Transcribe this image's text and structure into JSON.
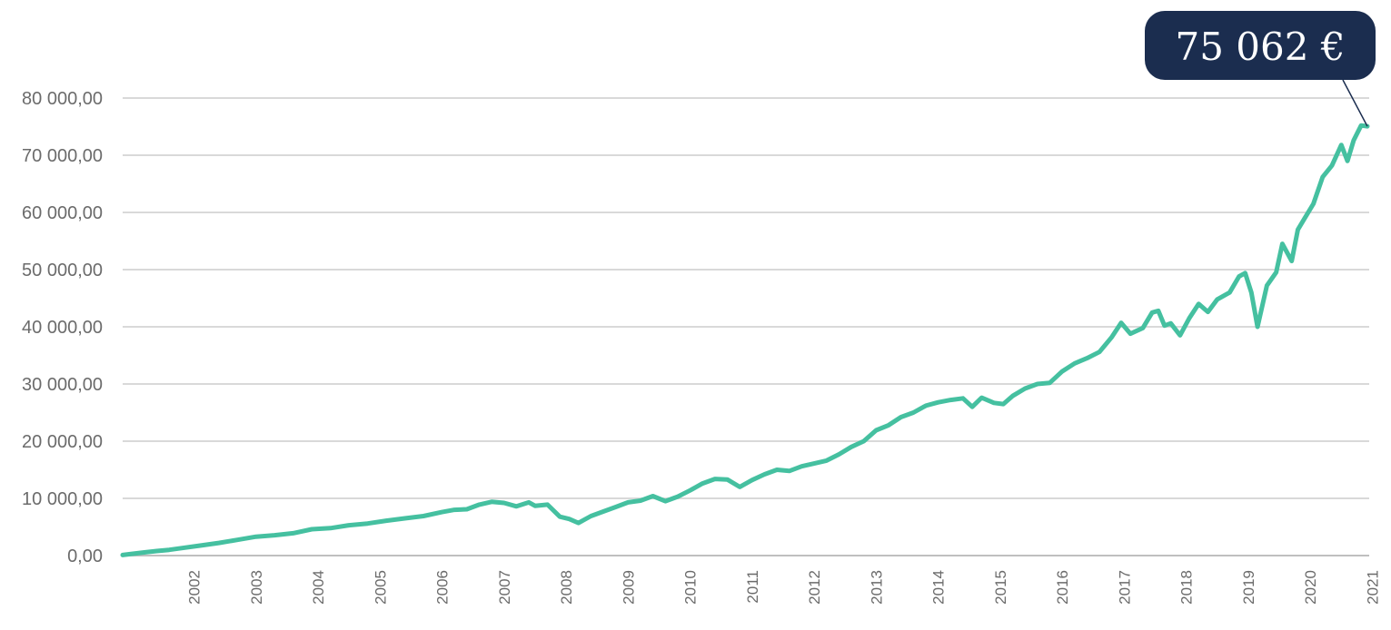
{
  "chart_data": {
    "type": "line",
    "title": "",
    "xlabel": "",
    "ylabel": "",
    "ylim": [
      0,
      80000
    ],
    "xlim": [
      2001.35,
      2021.45
    ],
    "grid": true,
    "legend": "none",
    "y_tick_labels": [
      "0,00",
      "10 000,00",
      "20 000,00",
      "30 000,00",
      "40 000,00",
      "50 000,00",
      "60 000,00",
      "70 000,00",
      "80 000,00"
    ],
    "x_tick_labels": [
      "2002",
      "2003",
      "2004",
      "2005",
      "2006",
      "2007",
      "2008",
      "2009",
      "2010",
      "2011",
      "2012",
      "2013",
      "2014",
      "2015",
      "2016",
      "2017",
      "2018",
      "2019",
      "2020",
      "2021"
    ],
    "callout": "75 062 €",
    "colors": {
      "line": "#45c0a0",
      "grid": "#d9d9d9",
      "callout_bg": "#1b2d4f",
      "callout_text": "#ffffff"
    },
    "series": [
      {
        "x": [
          2001.35,
          2001.5,
          2001.7,
          2001.9,
          2002.1,
          2002.3,
          2002.6,
          2002.9,
          2003.2,
          2003.5,
          2003.8,
          2004.1,
          2004.4,
          2004.7,
          2005.0,
          2005.3,
          2005.6,
          2005.9,
          2006.2,
          2006.5,
          2006.7,
          2006.9,
          2007.1,
          2007.3,
          2007.5,
          2007.7,
          2007.9,
          2008.0,
          2008.2,
          2008.4,
          2008.55,
          2008.7,
          2008.9,
          2009.1,
          2009.3,
          2009.5,
          2009.7,
          2009.9,
          2010.1,
          2010.3,
          2010.5,
          2010.7,
          2010.9,
          2011.1,
          2011.3,
          2011.5,
          2011.7,
          2011.9,
          2012.1,
          2012.3,
          2012.5,
          2012.7,
          2012.9,
          2013.1,
          2013.3,
          2013.5,
          2013.7,
          2013.9,
          2014.1,
          2014.3,
          2014.5,
          2014.7,
          2014.9,
          2015.05,
          2015.2,
          2015.4,
          2015.55,
          2015.7,
          2015.9,
          2016.1,
          2016.3,
          2016.5,
          2016.7,
          2016.9,
          2017.1,
          2017.3,
          2017.45,
          2017.6,
          2017.8,
          2017.95,
          2018.05,
          2018.15,
          2018.25,
          2018.4,
          2018.55,
          2018.7,
          2018.85,
          2019.0,
          2019.2,
          2019.35,
          2019.45,
          2019.55,
          2019.65,
          2019.8,
          2019.95,
          2020.05,
          2020.2,
          2020.3,
          2020.4,
          2020.55,
          2020.7,
          2020.85,
          2021.0,
          2021.1,
          2021.2,
          2021.32,
          2021.42
        ],
        "values": [
          100,
          300,
          550,
          800,
          1000,
          1300,
          1750,
          2200,
          2750,
          3300,
          3550,
          3900,
          4600,
          4800,
          5300,
          5600,
          6100,
          6500,
          6900,
          7600,
          8000,
          8100,
          8900,
          9400,
          9200,
          8600,
          9300,
          8700,
          8900,
          6800,
          6400,
          5700,
          6900,
          7700,
          8500,
          9300,
          9600,
          10400,
          9500,
          10300,
          11400,
          12600,
          13400,
          13300,
          12000,
          13200,
          14200,
          15000,
          14800,
          15600,
          16100,
          16600,
          17700,
          19000,
          20000,
          21900,
          22800,
          24200,
          25000,
          26200,
          26800,
          27200,
          27500,
          26000,
          27600,
          26700,
          26500,
          27900,
          29200,
          30000,
          30200,
          32200,
          33600,
          34500,
          35600,
          38200,
          40700,
          38800,
          39800,
          42500,
          42800,
          40200,
          40600,
          38500,
          41500,
          44000,
          42600,
          44800,
          46000,
          48800,
          49400,
          46000,
          40000,
          47200,
          49500,
          54500,
          51500,
          57000,
          58800,
          61500,
          66200,
          68200,
          71800,
          69000,
          72600,
          75200,
          75062
        ]
      }
    ]
  }
}
